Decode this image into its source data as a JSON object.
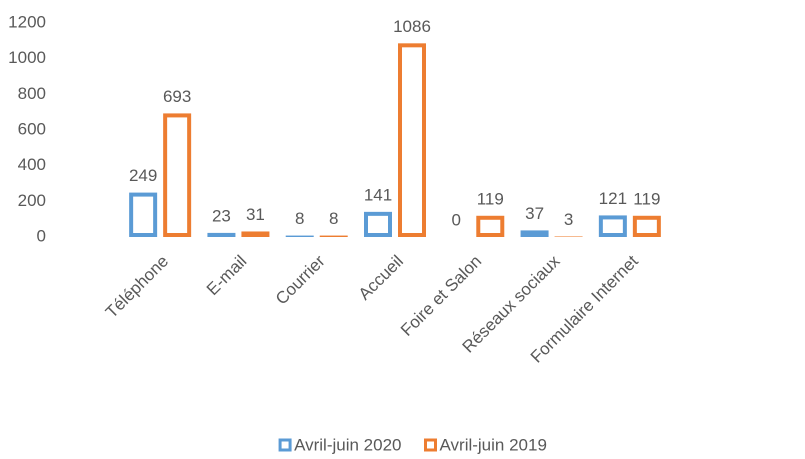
{
  "chart_data": {
    "type": "bar",
    "categories": [
      "Téléphone",
      "E-mail",
      "Courrier",
      "Accueil",
      "Foire et Salon",
      "Réseaux sociaux",
      "Formulaire Internet"
    ],
    "series": [
      {
        "name": "Avril-juin 2020",
        "color": "#5b9bd5",
        "values": [
          249,
          23,
          8,
          141,
          0,
          37,
          121
        ]
      },
      {
        "name": "Avril-juin 2019",
        "color": "#ed7d31",
        "values": [
          693,
          31,
          8,
          1086,
          119,
          3,
          119
        ]
      }
    ],
    "ylim": [
      0,
      1200
    ],
    "yticks": [
      0,
      200,
      400,
      600,
      800,
      1000,
      1200
    ],
    "grid": false,
    "legend": "bottom"
  }
}
